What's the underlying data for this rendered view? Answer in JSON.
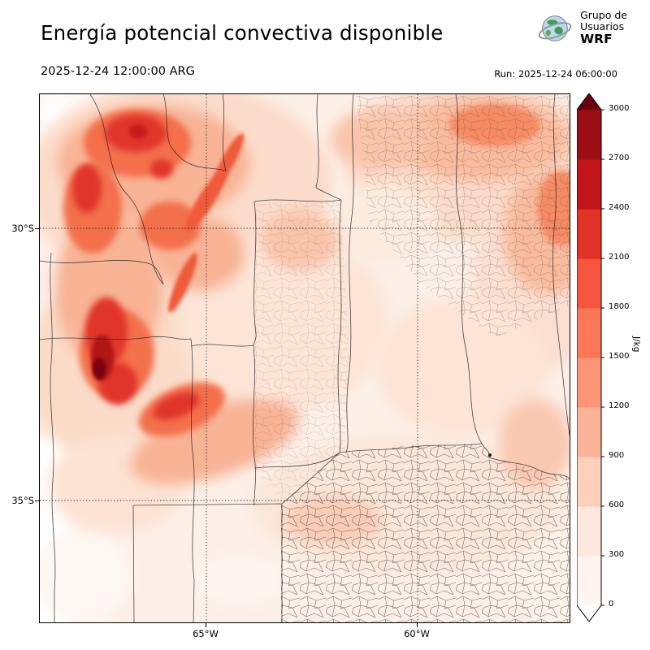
{
  "header": {
    "title": "Energía potencial convectiva disponible",
    "valid_time": "2025-12-24 12:00:00 ARG",
    "run_label": "Run: 2025-12-24 06:00:00"
  },
  "logo": {
    "line1": "Grupo de",
    "line2": "Usuarios",
    "line3": "WRF",
    "icon": "globe-icon"
  },
  "map": {
    "lat_labels": [
      "30°S",
      "35°S"
    ],
    "lon_labels": [
      "65°W",
      "60°W"
    ]
  },
  "colorbar": {
    "units": "J/kg",
    "tick_labels": [
      "0",
      "300",
      "600",
      "900",
      "1200",
      "1500",
      "1800",
      "2100",
      "2400",
      "2700",
      "3000"
    ],
    "segment_colors": [
      "#fff5f0",
      "#fee7dc",
      "#fdd0bc",
      "#fcb499",
      "#fc9576",
      "#fb7757",
      "#f5553d",
      "#e33328",
      "#c3161b",
      "#9c0d14"
    ],
    "over_color": "#67000d",
    "under_color": "#ffffff"
  }
}
